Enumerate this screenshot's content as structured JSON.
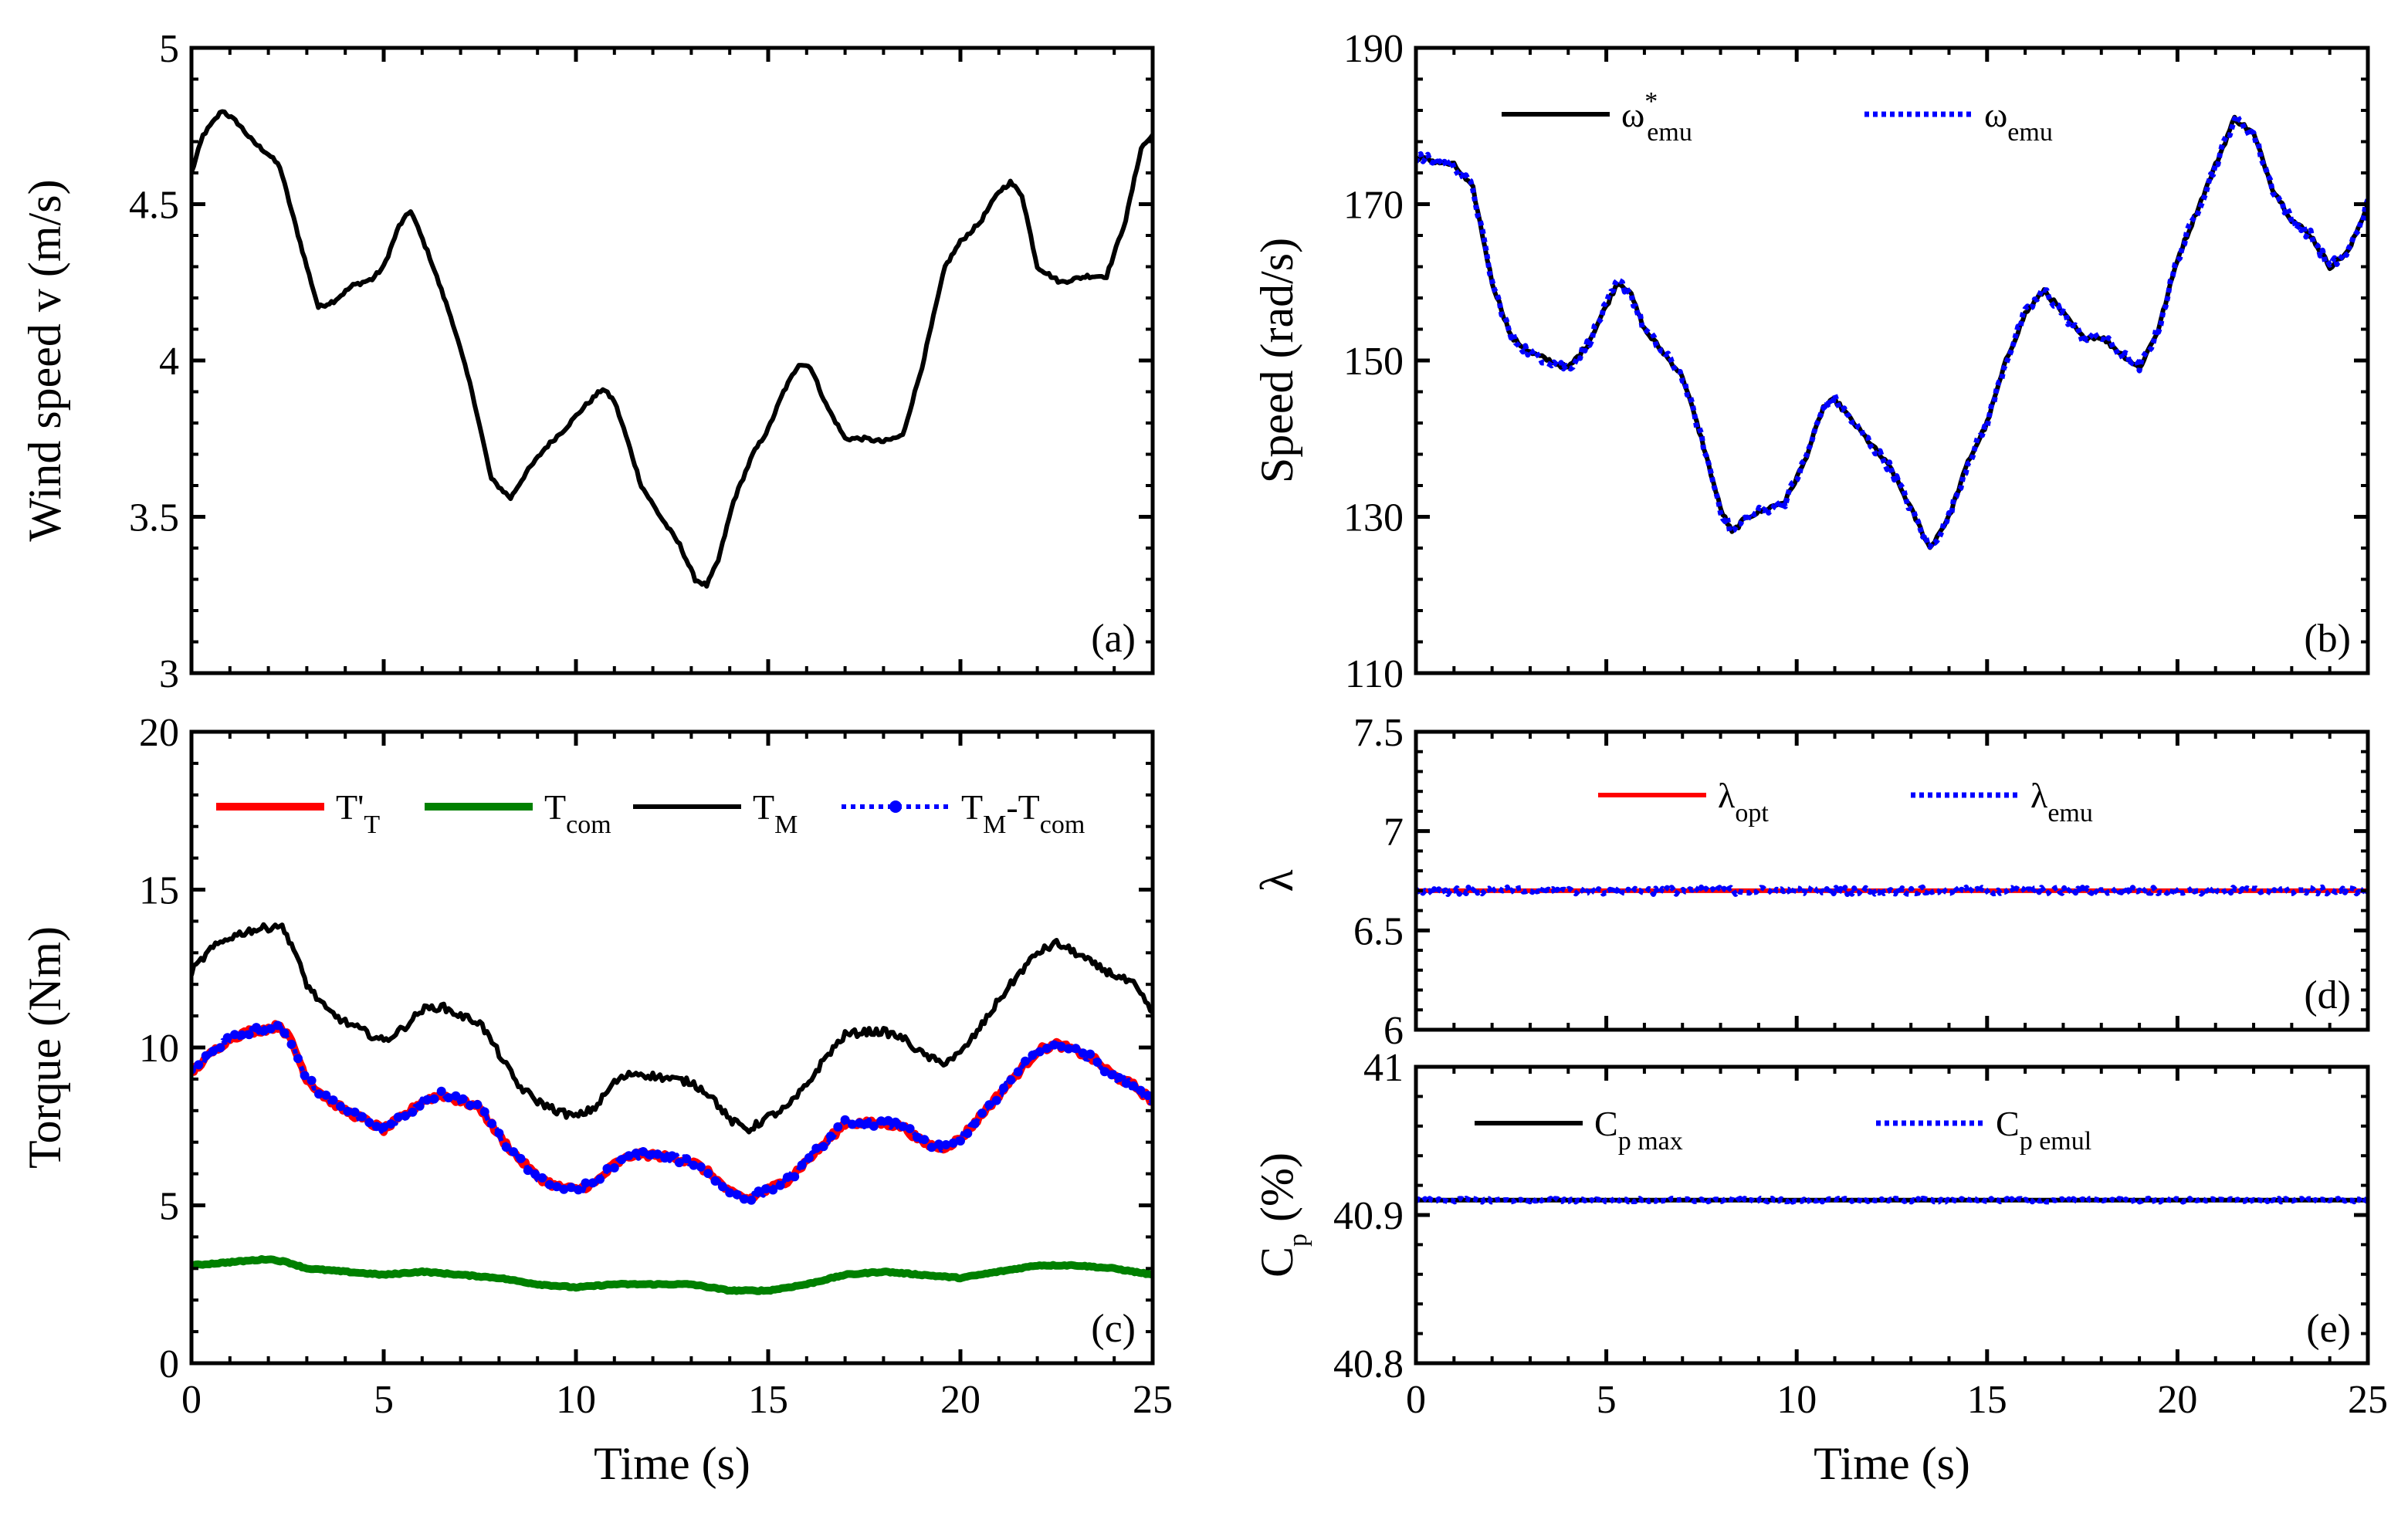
{
  "chart_data": [
    {
      "id": "a",
      "type": "line",
      "panel_label": "(a)",
      "xlabel": "",
      "ylabel": "Wind speed  v (m/s)",
      "xlim": [
        0,
        25
      ],
      "ylim": [
        3,
        5
      ],
      "xticks": [
        0,
        5,
        10,
        15,
        20,
        25
      ],
      "yticks": [
        3,
        3.5,
        4,
        4.5,
        5
      ],
      "ytick_labels": [
        "3",
        "3.5",
        "4",
        "4.5",
        "5"
      ],
      "legend": [],
      "series": [
        {
          "name": "v",
          "color": "#000000",
          "style": "solid",
          "noise": 0.006,
          "x": [
            0,
            0.3,
            0.8,
            1.2,
            1.6,
            2.0,
            2.3,
            2.6,
            3.0,
            3.3,
            3.7,
            4.2,
            4.7,
            5.0,
            5.4,
            5.7,
            6.2,
            6.8,
            7.3,
            7.8,
            8.3,
            8.7,
            9.2,
            9.7,
            10.2,
            10.7,
            11.0,
            11.3,
            11.7,
            12.2,
            12.7,
            13.1,
            13.4,
            13.7,
            14.1,
            14.6,
            15.0,
            15.4,
            15.8,
            16.1,
            16.5,
            17.0,
            17.5,
            18.0,
            18.5,
            19.0,
            19.6,
            20.0,
            20.5,
            21.0,
            21.3,
            21.6,
            22.0,
            22.6,
            23.3,
            23.8,
            24.3,
            24.7,
            25.0
          ],
          "y": [
            4.6,
            4.72,
            4.8,
            4.76,
            4.7,
            4.66,
            4.62,
            4.48,
            4.3,
            4.17,
            4.19,
            4.24,
            4.26,
            4.3,
            4.43,
            4.48,
            4.33,
            4.12,
            3.9,
            3.62,
            3.56,
            3.64,
            3.72,
            3.78,
            3.85,
            3.91,
            3.87,
            3.76,
            3.6,
            3.5,
            3.41,
            3.3,
            3.28,
            3.36,
            3.55,
            3.7,
            3.78,
            3.9,
            3.99,
            3.98,
            3.86,
            3.75,
            3.75,
            3.74,
            3.76,
            3.98,
            4.3,
            4.38,
            4.44,
            4.54,
            4.57,
            4.53,
            4.3,
            4.25,
            4.27,
            4.27,
            4.45,
            4.68,
            4.72
          ]
        }
      ]
    },
    {
      "id": "b",
      "type": "line",
      "panel_label": "(b)",
      "xlabel": "",
      "ylabel": "Speed (rad/s)",
      "xlim": [
        0,
        25
      ],
      "ylim": [
        110,
        190
      ],
      "xticks": [
        0,
        5,
        10,
        15,
        20,
        25
      ],
      "yticks": [
        110,
        130,
        150,
        170,
        190
      ],
      "ytick_labels": [
        "110",
        "130",
        "150",
        "170",
        "190"
      ],
      "legend": [
        {
          "label": "ω",
          "sup": "*",
          "sub": "emu",
          "color": "#000000",
          "style": "solid"
        },
        {
          "label": "ω",
          "sup": "",
          "sub": "emu",
          "color": "#0000ff",
          "style": "dotted"
        }
      ],
      "series": [
        {
          "name": "ω*emu",
          "color": "#000000",
          "style": "solid",
          "noise": 0.3,
          "x": [
            0,
            0.5,
            1.0,
            1.5,
            2.0,
            2.5,
            3.0,
            3.5,
            4.0,
            4.5,
            5.0,
            5.3,
            5.6,
            6.0,
            6.5,
            7.0,
            7.5,
            8.0,
            8.3,
            8.7,
            9.2,
            9.7,
            10.2,
            10.7,
            11.0,
            11.5,
            12.0,
            12.5,
            13.0,
            13.5,
            14.0,
            14.5,
            15.0,
            15.5,
            16.0,
            16.5,
            17.0,
            17.5,
            18.0,
            18.5,
            19.0,
            19.5,
            20.0,
            20.5,
            21.0,
            21.5,
            22.0,
            22.5,
            23.0,
            23.5,
            24.0,
            24.5,
            25.0
          ],
          "y": [
            176,
            175.5,
            175,
            172,
            160,
            153,
            151,
            150,
            149,
            152,
            157,
            160,
            159,
            154,
            151,
            148,
            140,
            131,
            128,
            130,
            131,
            132,
            137,
            144,
            145,
            142,
            139,
            136,
            131,
            126,
            130,
            137,
            142,
            150,
            156,
            159,
            156,
            153,
            153,
            151,
            149,
            154,
            163,
            169,
            175,
            181,
            179,
            172,
            168,
            166,
            162,
            164,
            170
          ]
        },
        {
          "name": "ωemu",
          "color": "#0000ff",
          "style": "dotted",
          "noise": 0.7,
          "x": [
            0,
            0.5,
            1.0,
            1.5,
            2.0,
            2.5,
            3.0,
            3.5,
            4.0,
            4.5,
            5.0,
            5.3,
            5.6,
            6.0,
            6.5,
            7.0,
            7.5,
            8.0,
            8.3,
            8.7,
            9.2,
            9.7,
            10.2,
            10.7,
            11.0,
            11.5,
            12.0,
            12.5,
            13.0,
            13.5,
            14.0,
            14.5,
            15.0,
            15.5,
            16.0,
            16.5,
            17.0,
            17.5,
            18.0,
            18.5,
            19.0,
            19.5,
            20.0,
            20.5,
            21.0,
            21.5,
            22.0,
            22.5,
            23.0,
            23.5,
            24.0,
            24.5,
            25.0
          ],
          "y": [
            176,
            175.5,
            175,
            172,
            160,
            153,
            151,
            150,
            149,
            152,
            157,
            160,
            159,
            154,
            151,
            148,
            140,
            131,
            128,
            130,
            131,
            132,
            137,
            144,
            145,
            142,
            139,
            136,
            131,
            126,
            130,
            137,
            142,
            150,
            156,
            159,
            156,
            153,
            153,
            151,
            149,
            154,
            163,
            169,
            175,
            181,
            179,
            172,
            168,
            166,
            162,
            164,
            170
          ]
        }
      ]
    },
    {
      "id": "c",
      "type": "line",
      "panel_label": "(c)",
      "xlabel": "Time (s)",
      "ylabel": "Torque  (Nm)",
      "xlim": [
        0,
        25
      ],
      "ylim": [
        0,
        20
      ],
      "xticks": [
        0,
        5,
        10,
        15,
        20,
        25
      ],
      "yticks": [
        0,
        5,
        10,
        15,
        20
      ],
      "ytick_labels": [
        "0",
        "5",
        "10",
        "15",
        "20"
      ],
      "legend": [
        {
          "label": "T'",
          "sup": "",
          "sub": "T",
          "color": "#ff0000",
          "style": "solid"
        },
        {
          "label": "T",
          "sup": "",
          "sub": "com",
          "color": "#008000",
          "style": "solid"
        },
        {
          "label": "T",
          "sup": "",
          "sub": "M",
          "color": "#000000",
          "style": "solid"
        },
        {
          "label": "T",
          "sup": "",
          "sub": "M",
          "label2": "-T",
          "sub2": "com",
          "color": "#0000ff",
          "style": "dotted-marker"
        }
      ],
      "series": [
        {
          "name": "T'T",
          "color": "#ff0000",
          "style": "solid-thick",
          "noise": 0.1,
          "x": [
            0,
            0.5,
            1.0,
            1.5,
            2.0,
            2.3,
            2.6,
            3.0,
            3.5,
            4.0,
            4.5,
            5.0,
            5.5,
            6.0,
            6.5,
            7.0,
            7.5,
            8.0,
            8.5,
            9.0,
            9.5,
            10.0,
            10.5,
            11.0,
            11.5,
            12.0,
            12.5,
            13.0,
            13.5,
            14.0,
            14.5,
            15.0,
            15.5,
            16.0,
            16.5,
            17.0,
            17.5,
            18.0,
            18.5,
            19.0,
            19.5,
            20.0,
            20.5,
            21.0,
            21.5,
            22.0,
            22.5,
            23.0,
            23.5,
            24.0,
            24.5,
            25.0
          ],
          "y": [
            9.2,
            9.8,
            10.3,
            10.5,
            10.6,
            10.7,
            10.2,
            9.0,
            8.4,
            8.0,
            7.7,
            7.4,
            7.8,
            8.3,
            8.5,
            8.3,
            8.1,
            7.2,
            6.5,
            5.9,
            5.6,
            5.5,
            5.7,
            6.3,
            6.6,
            6.6,
            6.5,
            6.4,
            6.0,
            5.4,
            5.2,
            5.5,
            5.8,
            6.4,
            7.0,
            7.6,
            7.6,
            7.6,
            7.5,
            7.0,
            6.8,
            7.1,
            7.8,
            8.5,
            9.2,
            9.9,
            10.1,
            9.9,
            9.6,
            9.1,
            8.8,
            8.3
          ]
        },
        {
          "name": "Tcom",
          "color": "#008000",
          "style": "solid-thick",
          "noise": 0.02,
          "x": [
            0,
            1.0,
            2.0,
            2.5,
            3.0,
            4.0,
            5.0,
            6.0,
            7.0,
            8.0,
            9.0,
            10.0,
            11.0,
            12.0,
            13.0,
            14.0,
            15.0,
            16.0,
            17.0,
            18.0,
            19.0,
            20.0,
            21.0,
            22.0,
            23.0,
            24.0,
            25.0
          ],
          "y": [
            3.1,
            3.2,
            3.3,
            3.2,
            3.0,
            2.9,
            2.8,
            2.9,
            2.8,
            2.7,
            2.5,
            2.4,
            2.5,
            2.5,
            2.5,
            2.3,
            2.3,
            2.5,
            2.8,
            2.9,
            2.8,
            2.7,
            2.9,
            3.1,
            3.1,
            3.0,
            2.8
          ]
        },
        {
          "name": "TM",
          "color": "#000000",
          "style": "solid",
          "noise": 0.12,
          "x": [
            0,
            0.5,
            1.0,
            1.5,
            2.0,
            2.3,
            2.6,
            3.0,
            3.5,
            4.0,
            4.5,
            5.0,
            5.5,
            6.0,
            6.5,
            7.0,
            7.5,
            8.0,
            8.5,
            9.0,
            9.5,
            10.0,
            10.5,
            11.0,
            11.5,
            12.0,
            12.5,
            13.0,
            13.5,
            14.0,
            14.5,
            15.0,
            15.5,
            16.0,
            16.5,
            17.0,
            17.5,
            18.0,
            18.5,
            19.0,
            19.5,
            20.0,
            20.5,
            21.0,
            21.5,
            22.0,
            22.5,
            23.0,
            23.5,
            24.0,
            24.5,
            25.0
          ],
          "y": [
            12.4,
            13.1,
            13.5,
            13.7,
            13.8,
            13.9,
            13.3,
            12.0,
            11.2,
            10.8,
            10.5,
            10.2,
            10.6,
            11.2,
            11.3,
            11.0,
            10.8,
            9.8,
            8.8,
            8.3,
            8.0,
            7.8,
            8.1,
            8.9,
            9.2,
            9.1,
            9.0,
            8.9,
            8.5,
            7.7,
            7.4,
            7.8,
            8.1,
            8.8,
            9.7,
            10.4,
            10.5,
            10.5,
            10.3,
            9.8,
            9.5,
            9.8,
            10.6,
            11.5,
            12.3,
            13.0,
            13.3,
            13.0,
            12.6,
            12.3,
            12.0,
            11.1
          ]
        },
        {
          "name": "TM-Tcom",
          "color": "#0000ff",
          "style": "dotted-marker",
          "noise": 0.12,
          "x": [
            0,
            0.5,
            1.0,
            1.5,
            2.0,
            2.3,
            2.6,
            3.0,
            3.5,
            4.0,
            4.5,
            5.0,
            5.5,
            6.0,
            6.5,
            7.0,
            7.5,
            8.0,
            8.5,
            9.0,
            9.5,
            10.0,
            10.5,
            11.0,
            11.5,
            12.0,
            12.5,
            13.0,
            13.5,
            14.0,
            14.5,
            15.0,
            15.5,
            16.0,
            16.5,
            17.0,
            17.5,
            18.0,
            18.5,
            19.0,
            19.5,
            20.0,
            20.5,
            21.0,
            21.5,
            22.0,
            22.5,
            23.0,
            23.5,
            24.0,
            24.5,
            25.0
          ],
          "y": [
            9.2,
            9.8,
            10.3,
            10.5,
            10.6,
            10.7,
            10.2,
            9.0,
            8.4,
            8.0,
            7.7,
            7.4,
            7.8,
            8.3,
            8.5,
            8.3,
            8.1,
            7.2,
            6.5,
            5.9,
            5.6,
            5.5,
            5.7,
            6.3,
            6.6,
            6.6,
            6.5,
            6.4,
            6.0,
            5.4,
            5.2,
            5.5,
            5.8,
            6.4,
            7.0,
            7.6,
            7.6,
            7.6,
            7.5,
            7.0,
            6.8,
            7.1,
            7.8,
            8.5,
            9.2,
            9.9,
            10.1,
            9.9,
            9.6,
            9.1,
            8.8,
            8.3
          ]
        }
      ]
    },
    {
      "id": "d",
      "type": "line",
      "panel_label": "(d)",
      "xlabel": "",
      "ylabel": "λ",
      "xlim": [
        0,
        25
      ],
      "ylim": [
        6,
        7.5
      ],
      "xticks": [
        0,
        5,
        10,
        15,
        20,
        25
      ],
      "yticks": [
        6,
        6.5,
        7,
        7.5
      ],
      "ytick_labels": [
        "6",
        "6.5",
        "7",
        "7.5"
      ],
      "legend": [
        {
          "label": "λ",
          "sup": "",
          "sub": "opt",
          "color": "#ff0000",
          "style": "solid"
        },
        {
          "label": "λ",
          "sup": "",
          "sub": "emu",
          "color": "#0000ff",
          "style": "dotted"
        }
      ],
      "series": [
        {
          "name": "λopt",
          "color": "#ff0000",
          "style": "solid",
          "noise": 0,
          "x": [
            0,
            25
          ],
          "y": [
            6.7,
            6.7
          ]
        },
        {
          "name": "λemu",
          "color": "#0000ff",
          "style": "dotted",
          "noise": 0.018,
          "x": [
            0,
            25
          ],
          "y": [
            6.7,
            6.7
          ]
        }
      ]
    },
    {
      "id": "e",
      "type": "line",
      "panel_label": "(e)",
      "xlabel": "Time (s)",
      "ylabel": "C",
      "ylabel_sub": "p",
      "ylabel_suffix": " (%)",
      "xlim": [
        0,
        25
      ],
      "ylim": [
        40.8,
        41
      ],
      "xticks": [
        0,
        5,
        10,
        15,
        20,
        25
      ],
      "yticks": [
        40.8,
        40.9,
        41
      ],
      "ytick_labels": [
        "40.8",
        "40.9",
        "41"
      ],
      "legend": [
        {
          "label": "C",
          "sup": "",
          "sub": "p max",
          "color": "#000000",
          "style": "solid"
        },
        {
          "label": "C",
          "sup": "",
          "sub": "p emul",
          "color": "#0000ff",
          "style": "dotted"
        }
      ],
      "series": [
        {
          "name": "Cp max",
          "color": "#000000",
          "style": "solid",
          "noise": 0,
          "x": [
            0,
            25
          ],
          "y": [
            40.91,
            40.91
          ]
        },
        {
          "name": "Cp emul",
          "color": "#0000ff",
          "style": "dotted",
          "noise": 0.0012,
          "x": [
            0,
            25
          ],
          "y": [
            40.91,
            40.91
          ]
        }
      ]
    }
  ]
}
